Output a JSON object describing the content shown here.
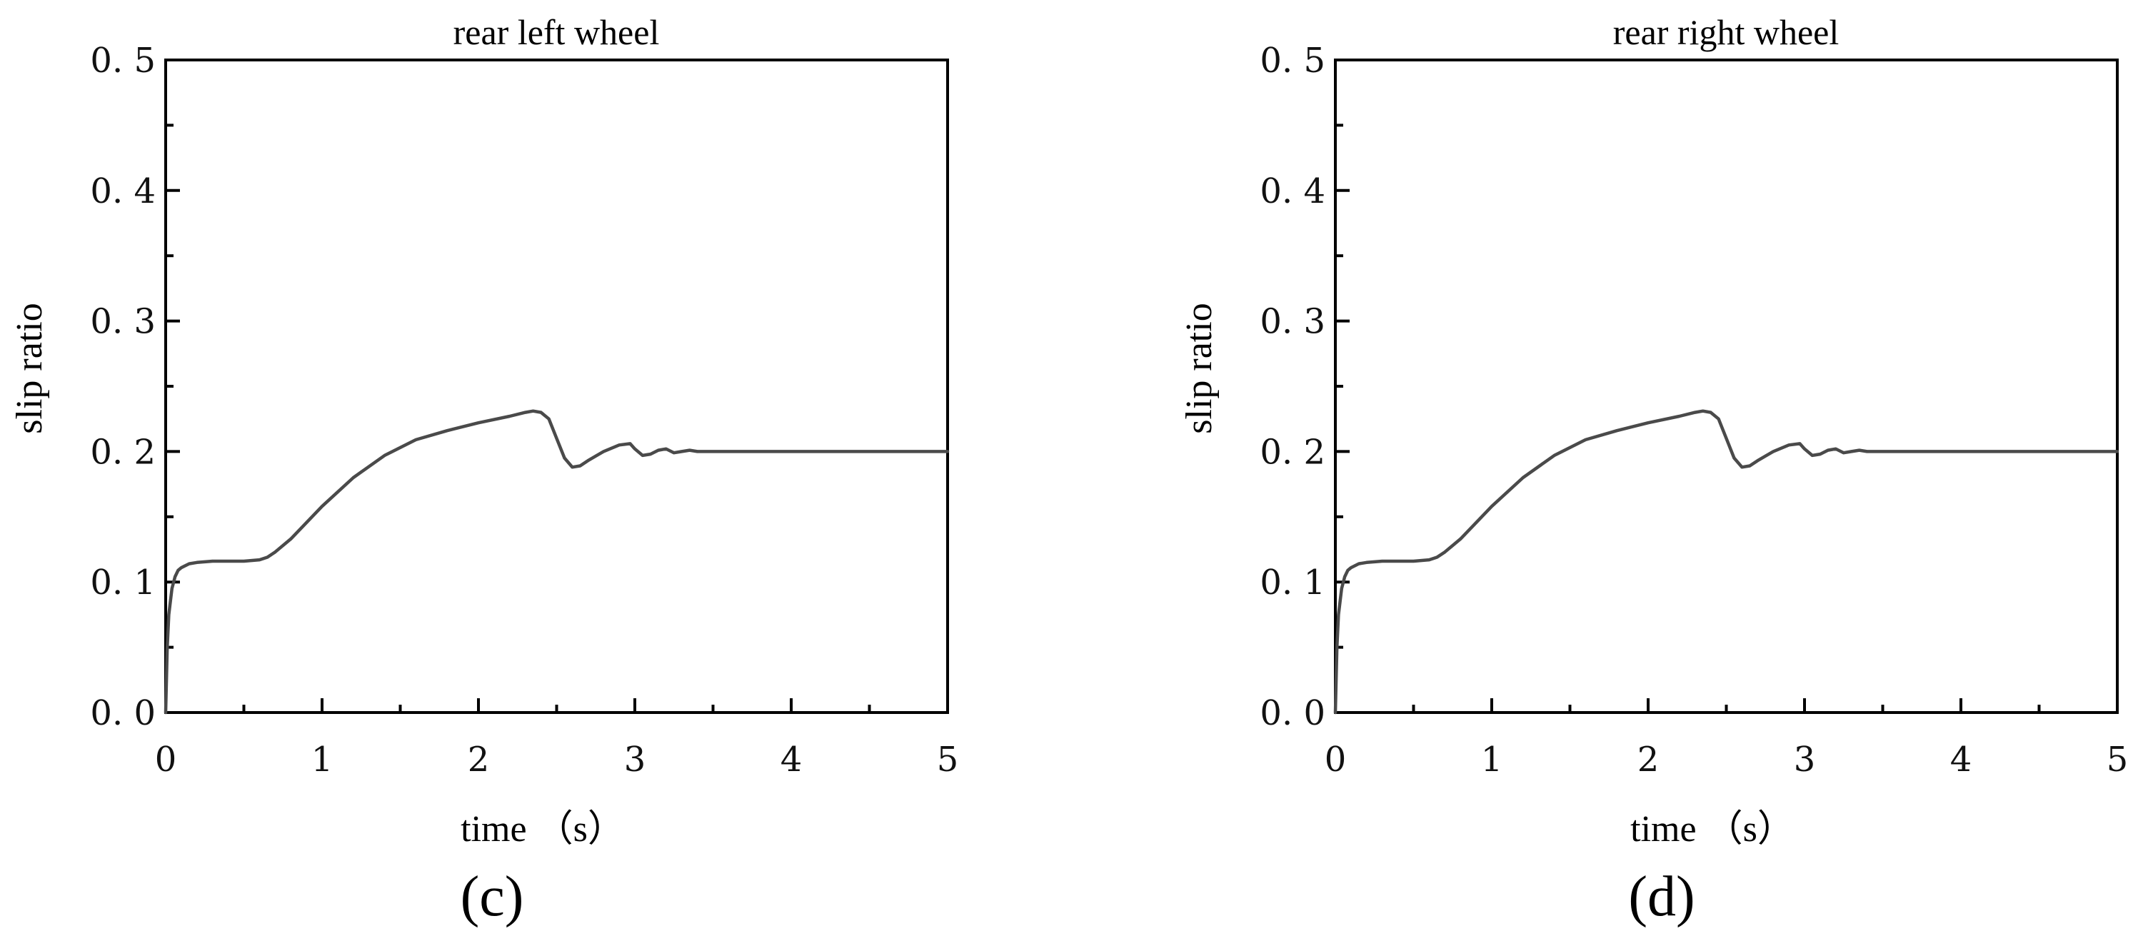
{
  "chart_data": [
    {
      "type": "line",
      "panel": "(c)",
      "title": "rear left wheel",
      "xlabel": "time （s）",
      "ylabel": "slip ratio",
      "xlim": [
        0,
        5
      ],
      "ylim": [
        0,
        0.5
      ],
      "xticks": [
        "0",
        "1",
        "2",
        "3",
        "4",
        "5"
      ],
      "yticks": [
        "0. 0",
        "0. 1",
        "0. 2",
        "0. 3",
        "0. 4",
        "0. 5"
      ],
      "grid": false,
      "series": [
        {
          "color": "#4a4a4a",
          "x": [
            0,
            0.01,
            0.02,
            0.04,
            0.06,
            0.08,
            0.1,
            0.15,
            0.2,
            0.3,
            0.4,
            0.5,
            0.6,
            0.65,
            0.7,
            0.8,
            1.0,
            1.2,
            1.4,
            1.5,
            1.6,
            1.8,
            2.0,
            2.2,
            2.3,
            2.35,
            2.4,
            2.45,
            2.5,
            2.55,
            2.6,
            2.65,
            2.7,
            2.8,
            2.9,
            2.97,
            3.0,
            3.05,
            3.1,
            3.15,
            3.2,
            3.25,
            3.3,
            3.35,
            3.4,
            3.5,
            4.0,
            4.5,
            5.0
          ],
          "values": [
            0.0,
            0.05,
            0.075,
            0.095,
            0.104,
            0.109,
            0.111,
            0.114,
            0.115,
            0.116,
            0.116,
            0.116,
            0.117,
            0.119,
            0.123,
            0.133,
            0.158,
            0.18,
            0.197,
            0.203,
            0.209,
            0.216,
            0.222,
            0.227,
            0.23,
            0.231,
            0.23,
            0.225,
            0.21,
            0.195,
            0.188,
            0.189,
            0.193,
            0.2,
            0.205,
            0.206,
            0.202,
            0.197,
            0.198,
            0.201,
            0.202,
            0.199,
            0.2,
            0.201,
            0.2,
            0.2,
            0.2,
            0.2,
            0.2
          ]
        }
      ]
    },
    {
      "type": "line",
      "panel": "(d)",
      "title": "rear right wheel",
      "xlabel": "time （s）",
      "ylabel": "slip ratio",
      "xlim": [
        0,
        5
      ],
      "ylim": [
        0,
        0.5
      ],
      "xticks": [
        "0",
        "1",
        "2",
        "3",
        "4",
        "5"
      ],
      "yticks": [
        "0. 0",
        "0. 1",
        "0. 2",
        "0. 3",
        "0. 4",
        "0. 5"
      ],
      "grid": false,
      "series": [
        {
          "color": "#4a4a4a",
          "x": [
            0,
            0.01,
            0.02,
            0.04,
            0.06,
            0.08,
            0.1,
            0.15,
            0.2,
            0.3,
            0.4,
            0.5,
            0.6,
            0.65,
            0.7,
            0.8,
            1.0,
            1.2,
            1.4,
            1.5,
            1.6,
            1.8,
            2.0,
            2.2,
            2.3,
            2.35,
            2.4,
            2.45,
            2.5,
            2.55,
            2.6,
            2.65,
            2.7,
            2.8,
            2.9,
            2.97,
            3.0,
            3.05,
            3.1,
            3.15,
            3.2,
            3.25,
            3.3,
            3.35,
            3.4,
            3.5,
            4.0,
            4.5,
            5.0
          ],
          "values": [
            0.0,
            0.05,
            0.075,
            0.095,
            0.104,
            0.109,
            0.111,
            0.114,
            0.115,
            0.116,
            0.116,
            0.116,
            0.117,
            0.119,
            0.123,
            0.133,
            0.158,
            0.18,
            0.197,
            0.203,
            0.209,
            0.216,
            0.222,
            0.227,
            0.23,
            0.231,
            0.23,
            0.225,
            0.21,
            0.195,
            0.188,
            0.189,
            0.193,
            0.2,
            0.205,
            0.206,
            0.202,
            0.197,
            0.198,
            0.201,
            0.202,
            0.199,
            0.2,
            0.201,
            0.2,
            0.2,
            0.2,
            0.2,
            0.2
          ]
        }
      ]
    }
  ]
}
